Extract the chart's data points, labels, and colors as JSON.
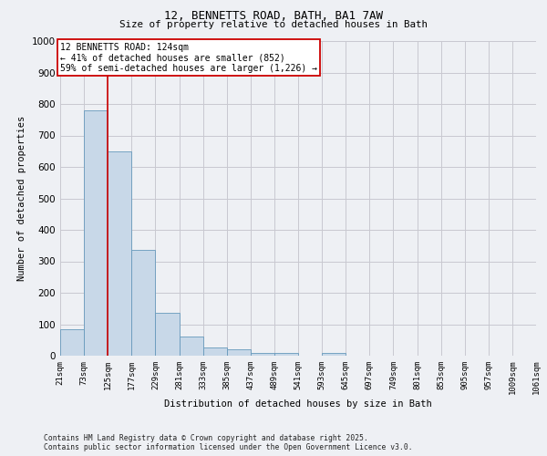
{
  "title1": "12, BENNETTS ROAD, BATH, BA1 7AW",
  "title2": "Size of property relative to detached houses in Bath",
  "xlabel": "Distribution of detached houses by size in Bath",
  "ylabel": "Number of detached properties",
  "bar_values": [
    85,
    780,
    650,
    335,
    135,
    60,
    25,
    20,
    10,
    10,
    0,
    10,
    0,
    0,
    0,
    0,
    0,
    0,
    0,
    0
  ],
  "bin_edges": [
    21,
    73,
    125,
    177,
    229,
    281,
    333,
    385,
    437,
    489,
    541,
    593,
    645,
    697,
    749,
    801,
    853,
    905,
    957,
    1009,
    1061
  ],
  "bar_color": "#c8d8e8",
  "bar_edge_color": "#6699bb",
  "grid_color": "#c8c8d0",
  "bg_color": "#eef0f4",
  "red_line_x": 125,
  "ylim": [
    0,
    1000
  ],
  "annotation_text": "12 BENNETTS ROAD: 124sqm\n← 41% of detached houses are smaller (852)\n59% of semi-detached houses are larger (1,226) →",
  "annotation_box_color": "#ffffff",
  "annotation_border_color": "#cc0000",
  "footnote1": "Contains HM Land Registry data © Crown copyright and database right 2025.",
  "footnote2": "Contains public sector information licensed under the Open Government Licence v3.0."
}
